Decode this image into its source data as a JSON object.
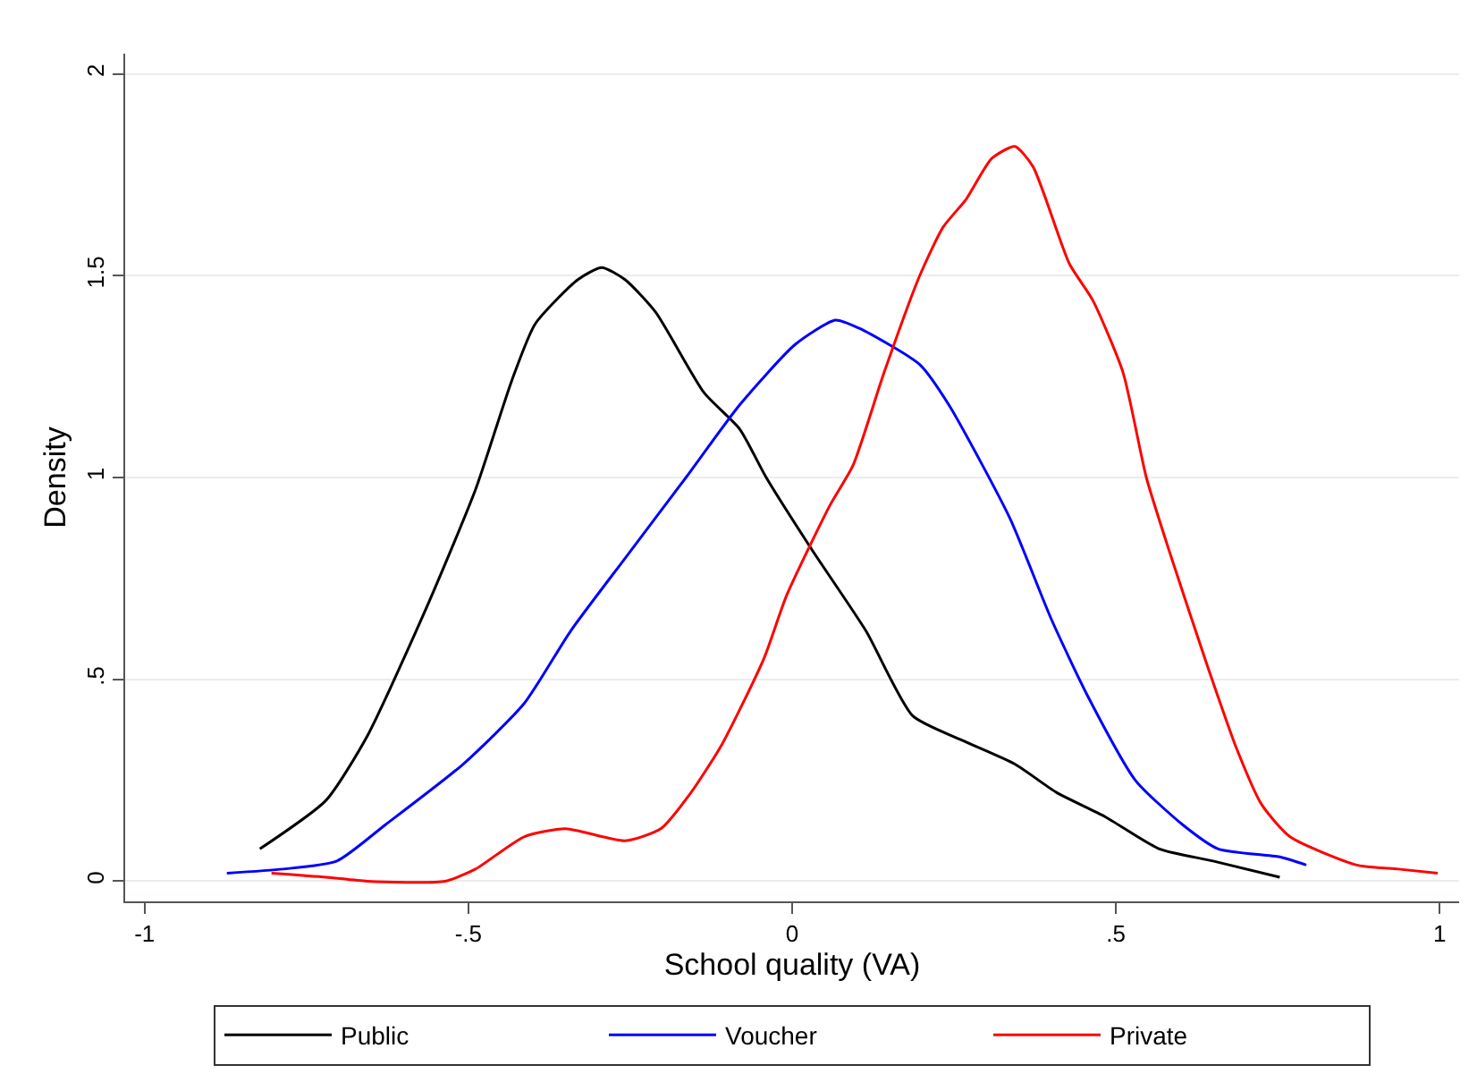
{
  "chart_data": {
    "type": "line",
    "xlabel": "School quality (VA)",
    "ylabel": "Density",
    "xlim": [
      -1.03,
      1.03
    ],
    "ylim": [
      -0.05,
      2.05
    ],
    "xticks": [
      {
        "value": -1,
        "label": "-1"
      },
      {
        "value": -0.5,
        "label": "-.5"
      },
      {
        "value": 0,
        "label": "0"
      },
      {
        "value": 0.5,
        "label": ".5"
      },
      {
        "value": 1,
        "label": "1"
      }
    ],
    "yticks": [
      {
        "value": 0,
        "label": "0"
      },
      {
        "value": 0.5,
        "label": ".5"
      },
      {
        "value": 1,
        "label": "1"
      },
      {
        "value": 1.5,
        "label": "1.5"
      },
      {
        "value": 2,
        "label": "2"
      }
    ],
    "grid": "y",
    "legend": "bottom",
    "marker": "none",
    "line_style": "solid",
    "series": [
      {
        "name": "Public",
        "color": "#000000",
        "x": [
          -0.822,
          -0.72,
          -0.656,
          -0.564,
          -0.489,
          -0.433,
          -0.397,
          -0.331,
          -0.294,
          -0.258,
          -0.211,
          -0.136,
          -0.081,
          -0.04,
          0.031,
          0.114,
          0.186,
          0.261,
          0.344,
          0.408,
          0.483,
          0.567,
          0.65,
          0.753
        ],
        "values": [
          0.08,
          0.2,
          0.36,
          0.68,
          0.97,
          1.24,
          1.38,
          1.49,
          1.52,
          1.49,
          1.41,
          1.21,
          1.12,
          1.0,
          0.82,
          0.62,
          0.41,
          0.35,
          0.29,
          0.22,
          0.16,
          0.08,
          0.05,
          0.01
        ]
      },
      {
        "name": "Voucher",
        "color": "#0000ff",
        "x": [
          -0.873,
          -0.786,
          -0.703,
          -0.628,
          -0.508,
          -0.414,
          -0.342,
          -0.258,
          -0.164,
          -0.081,
          0.005,
          0.067,
          0.103,
          0.197,
          0.242,
          0.336,
          0.4,
          0.456,
          0.53,
          0.603,
          0.658,
          0.753,
          0.794
        ],
        "values": [
          0.02,
          0.03,
          0.05,
          0.14,
          0.29,
          0.44,
          0.62,
          0.8,
          1.0,
          1.18,
          1.33,
          1.39,
          1.37,
          1.28,
          1.18,
          0.9,
          0.65,
          0.46,
          0.25,
          0.14,
          0.08,
          0.06,
          0.04
        ]
      },
      {
        "name": "Private",
        "color": "#ff0000",
        "x": [
          -0.804,
          -0.72,
          -0.656,
          -0.536,
          -0.489,
          -0.414,
          -0.35,
          -0.258,
          -0.203,
          -0.156,
          -0.108,
          -0.044,
          -0.008,
          0.058,
          0.094,
          0.142,
          0.197,
          0.233,
          0.269,
          0.308,
          0.344,
          0.372,
          0.428,
          0.464,
          0.511,
          0.547,
          0.586,
          0.642,
          0.686,
          0.725,
          0.769,
          0.872,
          0.936,
          0.997
        ],
        "values": [
          0.02,
          0.01,
          0.0,
          0.0,
          0.03,
          0.11,
          0.13,
          0.1,
          0.13,
          0.22,
          0.34,
          0.55,
          0.71,
          0.93,
          1.03,
          1.26,
          1.5,
          1.62,
          1.69,
          1.79,
          1.82,
          1.77,
          1.53,
          1.44,
          1.26,
          1.0,
          0.8,
          0.53,
          0.33,
          0.19,
          0.11,
          0.04,
          0.03,
          0.02
        ]
      }
    ]
  }
}
